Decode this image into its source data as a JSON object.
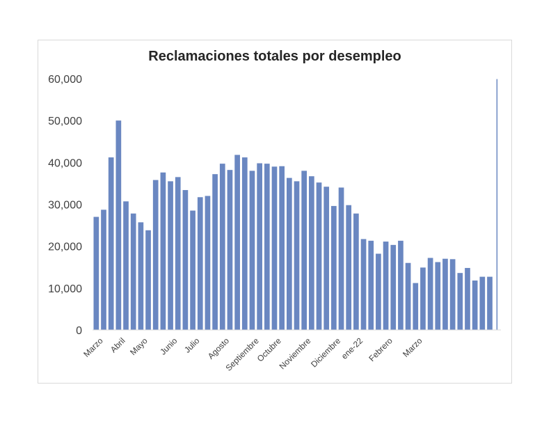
{
  "chart_data": {
    "type": "bar",
    "title": "Reclamaciones totales por desempleo",
    "xlabel": "",
    "ylabel": "",
    "ylim": [
      0,
      60000
    ],
    "yticks": [
      "0",
      "10,000",
      "20,000",
      "30,000",
      "40,000",
      "50,000",
      "60,000"
    ],
    "ytick_values": [
      0,
      10000,
      20000,
      30000,
      40000,
      50000,
      60000
    ],
    "grid": false,
    "legend": "none",
    "bar_color": "#6A87C1",
    "x_labels": [
      {
        "label": "Marzo",
        "index": 0
      },
      {
        "label": "Abril",
        "index": 3
      },
      {
        "label": "Mayo",
        "index": 6
      },
      {
        "label": "Junio",
        "index": 10
      },
      {
        "label": "Julio",
        "index": 13
      },
      {
        "label": "Agosto",
        "index": 17
      },
      {
        "label": "Septiembre",
        "index": 21
      },
      {
        "label": "Octubre",
        "index": 24
      },
      {
        "label": "Noviembre",
        "index": 28
      },
      {
        "label": "Diciembre",
        "index": 32
      },
      {
        "label": "ene-22",
        "index": 35
      },
      {
        "label": "Febrero",
        "index": 39
      },
      {
        "label": "Marzo",
        "index": 43
      }
    ],
    "values": [
      27000,
      28700,
      41200,
      50000,
      30700,
      27800,
      25700,
      23800,
      35800,
      37600,
      35500,
      36500,
      33400,
      28500,
      31700,
      32000,
      37200,
      39700,
      38200,
      41800,
      41200,
      38000,
      39800,
      39700,
      39000,
      39100,
      36300,
      35500,
      38000,
      36700,
      35200,
      34200,
      29600,
      34000,
      29800,
      27800,
      21700,
      21300,
      18200,
      21100,
      20300,
      21300,
      16000,
      11200,
      14900,
      17200,
      16200,
      17000,
      16900,
      13600,
      14800,
      11800,
      12700,
      12700,
      59900
    ]
  }
}
